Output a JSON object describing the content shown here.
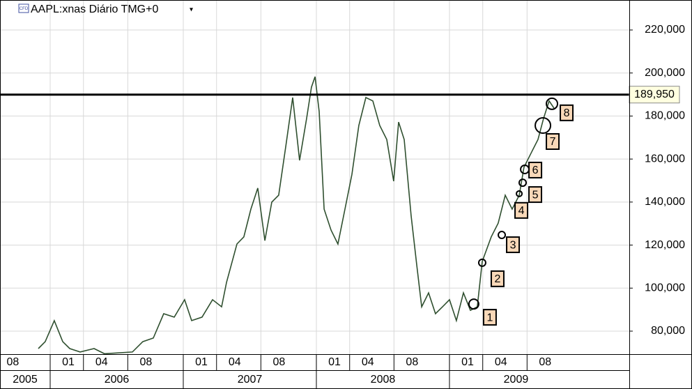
{
  "chart_data": {
    "type": "line",
    "icon": "CFD",
    "title": "AAPL:xnas Diário TMG+0",
    "menu": "▾",
    "x": [
      2005.911,
      2005.963,
      2006.031,
      2006.094,
      2006.147,
      2006.225,
      2006.33,
      2006.408,
      2006.618,
      2006.696,
      2006.775,
      2006.853,
      2006.932,
      2007.01,
      2007.063,
      2007.141,
      2007.22,
      2007.288,
      2007.325,
      2007.403,
      2007.455,
      2007.508,
      2007.56,
      2007.613,
      2007.665,
      2007.717,
      2007.77,
      2007.822,
      2007.874,
      2007.927,
      2007.963,
      2007.99,
      2008.021,
      2008.058,
      2008.11,
      2008.162,
      2008.215,
      2008.267,
      2008.319,
      2008.372,
      2008.424,
      2008.476,
      2008.529,
      2008.581,
      2008.618,
      2008.66,
      2008.712,
      2008.754,
      2008.791,
      2008.843,
      2008.895,
      2008.948,
      2009.0,
      2009.052,
      2009.105,
      2009.157,
      2009.209,
      2009.246,
      2009.314,
      2009.366,
      2009.419,
      2009.471,
      2009.524,
      2009.56,
      2009.613,
      2009.665,
      2009.707,
      2009.749,
      2009.785
    ],
    "series": [
      {
        "name": "AAPL",
        "color": "#2f4f2f",
        "values": [
          71900,
          75100,
          84900,
          75100,
          71900,
          70300,
          71900,
          69500,
          70300,
          75100,
          76800,
          88100,
          86500,
          94600,
          84900,
          86500,
          94600,
          91300,
          102700,
          120500,
          123800,
          136700,
          146500,
          122100,
          140000,
          143200,
          165900,
          188600,
          159400,
          178900,
          193400,
          198300,
          182100,
          136700,
          127000,
          120500,
          136700,
          152900,
          175600,
          188600,
          187000,
          175600,
          169100,
          149700,
          177200,
          169100,
          133500,
          110800,
          91300,
          97800,
          88100,
          91300,
          94600,
          84900,
          97800,
          89700,
          91300,
          112400,
          123800,
          130200,
          143200,
          136700,
          143200,
          156200,
          162700,
          169100,
          178900,
          187000,
          183700
        ]
      }
    ],
    "xlim": [
      2005.623,
      2010.351
    ],
    "xticks": [
      {
        "value": 2005.583,
        "label": "08"
      },
      {
        "value": 2006.0,
        "label": "01"
      },
      {
        "value": 2006.25,
        "label": "04"
      },
      {
        "value": 2006.583,
        "label": "08"
      },
      {
        "value": 2007.0,
        "label": "01"
      },
      {
        "value": 2007.25,
        "label": "04"
      },
      {
        "value": 2007.583,
        "label": "08"
      },
      {
        "value": 2008.0,
        "label": "01"
      },
      {
        "value": 2008.25,
        "label": "04"
      },
      {
        "value": 2008.583,
        "label": "08"
      },
      {
        "value": 2009.0,
        "label": "01"
      },
      {
        "value": 2009.25,
        "label": "04"
      },
      {
        "value": 2009.583,
        "label": "08"
      }
    ],
    "years": [
      2005,
      2006,
      2007,
      2008,
      2009
    ],
    "ylim": [
      69300,
      233940
    ],
    "yticks": [
      {
        "value": 80000,
        "label": "80,000"
      },
      {
        "value": 100000,
        "label": "100,000"
      },
      {
        "value": 120000,
        "label": "120,000"
      },
      {
        "value": 140000,
        "label": "140,000"
      },
      {
        "value": 160000,
        "label": "160,000"
      },
      {
        "value": 180000,
        "label": "180,000"
      },
      {
        "value": 200000,
        "label": "200,000"
      },
      {
        "value": 220000,
        "label": "220,000"
      }
    ],
    "grid": true,
    "level": 189950,
    "level_label": "189,950",
    "markers": [
      {
        "label": "1",
        "x": 2009.183,
        "value": 92600
      },
      {
        "label": "2",
        "x": 2009.246,
        "value": 111800
      },
      {
        "label": "3",
        "x": 2009.393,
        "value": 124700
      },
      {
        "label": "4",
        "x": 2009.524,
        "value": 143900
      },
      {
        "label": "5",
        "x": 2009.55,
        "value": 149000
      },
      {
        "label": "6",
        "x": 2009.566,
        "value": 155200
      },
      {
        "label": "7",
        "x": 2009.702,
        "value": 175600
      },
      {
        "label": "8",
        "x": 2009.77,
        "value": 185700
      }
    ]
  }
}
